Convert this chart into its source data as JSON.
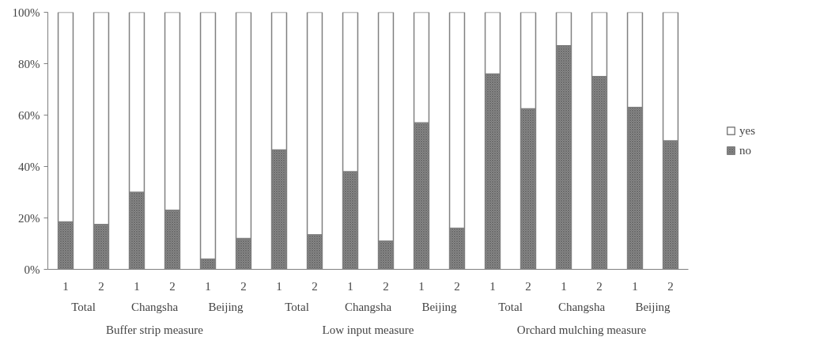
{
  "chart_data": {
    "type": "bar",
    "stacked": true,
    "categories": [
      "1",
      "2",
      "1",
      "2",
      "1",
      "2",
      "1",
      "2",
      "1",
      "2",
      "1",
      "2",
      "1",
      "2",
      "1",
      "2",
      "1",
      "2"
    ],
    "series": [
      {
        "name": "no",
        "color": "#8c8c8c",
        "values": [
          18.5,
          17.5,
          30,
          23,
          4,
          12,
          46.5,
          13.5,
          38,
          11,
          57,
          16,
          76,
          62.5,
          87,
          75,
          63,
          50
        ]
      },
      {
        "name": "yes",
        "color": "#ffffff",
        "values": [
          81.5,
          82.5,
          70,
          77,
          96,
          88,
          53.5,
          86.5,
          62,
          89,
          43,
          84,
          24,
          37.5,
          13,
          25,
          37,
          50
        ]
      }
    ],
    "ylim": [
      0,
      100
    ],
    "yticks": [
      {
        "value": 0,
        "label": "0%"
      },
      {
        "value": 20,
        "label": "20%"
      },
      {
        "value": 40,
        "label": "40%"
      },
      {
        "value": 60,
        "label": "60%"
      },
      {
        "value": 80,
        "label": "80%"
      },
      {
        "value": 100,
        "label": "100%"
      }
    ],
    "annotations": [
      "Total",
      "Changsha",
      "Beijing",
      "Total",
      "Changsha",
      "Beijing",
      "Total",
      "Changsha",
      "Beijing",
      "Buffer strip measure",
      "Low input measure",
      "Orchard mulching measure"
    ],
    "grid": false,
    "legend": "right"
  }
}
